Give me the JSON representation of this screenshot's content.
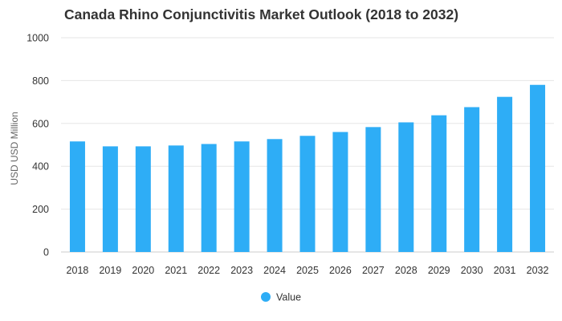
{
  "chart_data": {
    "type": "bar",
    "title": "Canada Rhino Conjunctivitis Market Outlook (2018 to 2032)",
    "xlabel": "",
    "ylabel": "USD USD Million",
    "ylim": [
      0,
      1000
    ],
    "yticks": [
      0,
      200,
      400,
      600,
      800,
      1000
    ],
    "grid": true,
    "legend": "bottom-center",
    "categories": [
      "2018",
      "2019",
      "2020",
      "2021",
      "2022",
      "2023",
      "2024",
      "2025",
      "2026",
      "2027",
      "2028",
      "2029",
      "2030",
      "2031",
      "2032"
    ],
    "series": [
      {
        "name": "Value",
        "color": "#2EADF6",
        "values": [
          516,
          493,
          493,
          497,
          504,
          516,
          527,
          542,
          560,
          583,
          605,
          638,
          676,
          724,
          780
        ]
      }
    ]
  }
}
